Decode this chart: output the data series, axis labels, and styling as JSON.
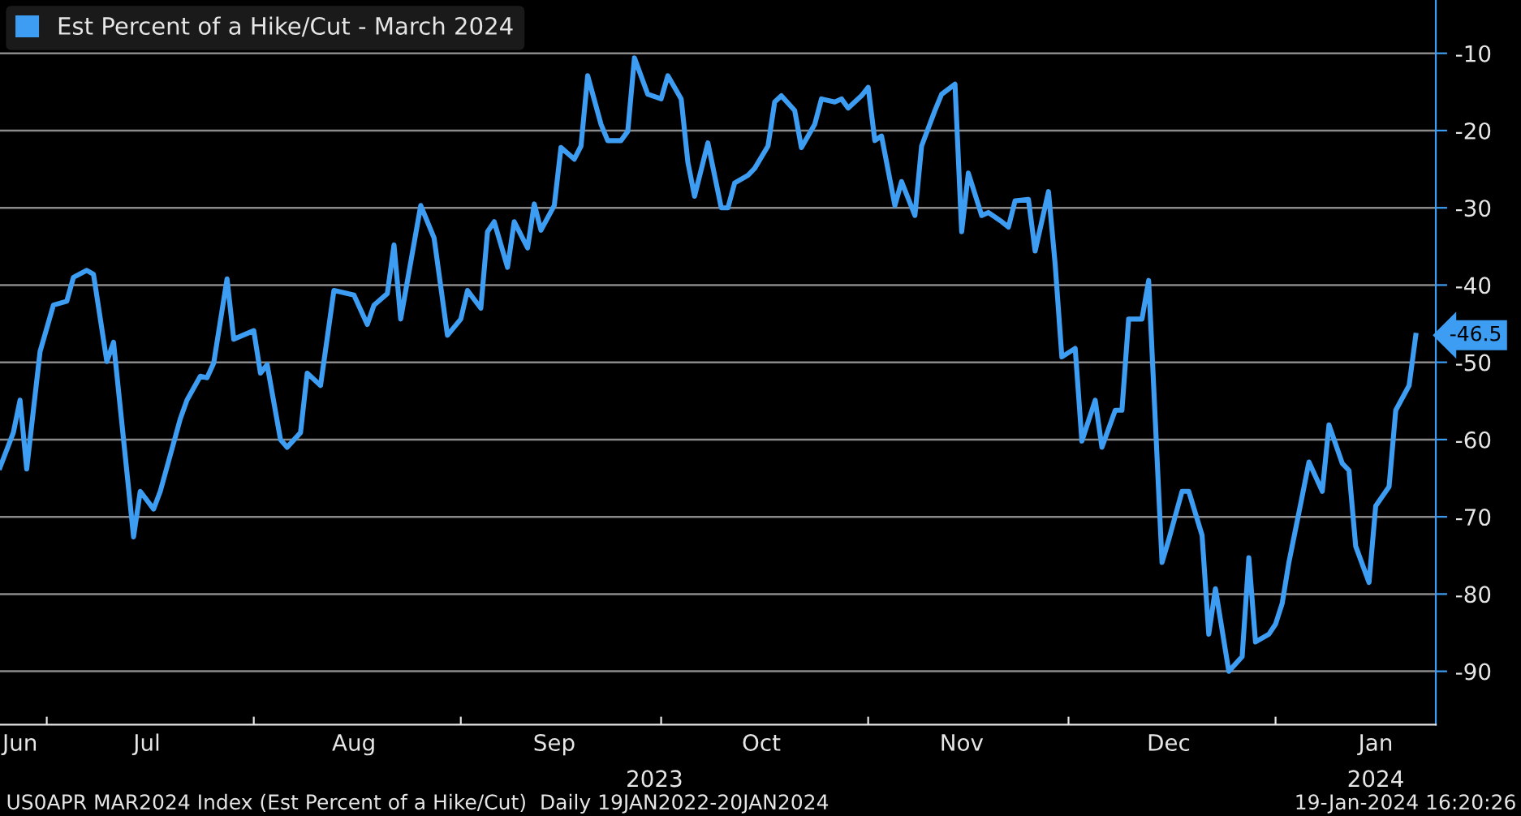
{
  "chart_data": {
    "type": "line",
    "x": [
      "2023-06-24",
      "2023-06-26",
      "2023-06-27",
      "2023-06-28",
      "2023-06-30",
      "2023-07-02",
      "2023-07-04",
      "2023-07-05",
      "2023-07-07",
      "2023-07-08",
      "2023-07-10",
      "2023-07-11",
      "2023-07-14",
      "2023-07-15",
      "2023-07-17",
      "2023-07-18",
      "2023-07-21",
      "2023-07-22",
      "2023-07-24",
      "2023-07-25",
      "2023-07-26",
      "2023-07-28",
      "2023-07-29",
      "2023-08-01",
      "2023-08-02",
      "2023-08-03",
      "2023-08-05",
      "2023-08-06",
      "2023-08-08",
      "2023-08-09",
      "2023-08-11",
      "2023-08-13",
      "2023-08-16",
      "2023-08-18",
      "2023-08-19",
      "2023-08-21",
      "2023-08-22",
      "2023-08-23",
      "2023-08-26",
      "2023-08-28",
      "2023-08-30",
      "2023-09-01",
      "2023-09-02",
      "2023-09-04",
      "2023-09-05",
      "2023-09-06",
      "2023-09-08",
      "2023-09-09",
      "2023-09-11",
      "2023-09-12",
      "2023-09-13",
      "2023-09-15",
      "2023-09-16",
      "2023-09-18",
      "2023-09-19",
      "2023-09-20",
      "2023-09-22",
      "2023-09-23",
      "2023-09-25",
      "2023-09-26",
      "2023-09-27",
      "2023-09-29",
      "2023-10-01",
      "2023-10-02",
      "2023-10-04",
      "2023-10-05",
      "2023-10-06",
      "2023-10-08",
      "2023-10-10",
      "2023-10-11",
      "2023-10-12",
      "2023-10-14",
      "2023-10-15",
      "2023-10-17",
      "2023-10-18",
      "2023-10-19",
      "2023-10-21",
      "2023-10-22",
      "2023-10-24",
      "2023-10-25",
      "2023-10-27",
      "2023-10-28",
      "2023-10-29",
      "2023-10-31",
      "2023-11-01",
      "2023-11-02",
      "2023-11-03",
      "2023-11-05",
      "2023-11-06",
      "2023-11-08",
      "2023-11-09",
      "2023-11-11",
      "2023-11-12",
      "2023-11-14",
      "2023-11-15",
      "2023-11-16",
      "2023-11-18",
      "2023-11-19",
      "2023-11-21",
      "2023-11-22",
      "2023-11-23",
      "2023-11-25",
      "2023-11-26",
      "2023-11-28",
      "2023-11-29",
      "2023-11-30",
      "2023-12-02",
      "2023-12-03",
      "2023-12-05",
      "2023-12-06",
      "2023-12-08",
      "2023-12-09",
      "2023-12-10",
      "2023-12-12",
      "2023-12-13",
      "2023-12-15",
      "2023-12-16",
      "2023-12-18",
      "2023-12-19",
      "2023-12-21",
      "2023-12-22",
      "2023-12-23",
      "2023-12-25",
      "2023-12-27",
      "2023-12-28",
      "2023-12-29",
      "2023-12-31",
      "2024-01-01",
      "2024-01-02",
      "2024-01-03",
      "2024-01-05",
      "2024-01-06",
      "2024-01-08",
      "2024-01-09",
      "2024-01-11",
      "2024-01-12",
      "2024-01-13",
      "2024-01-15",
      "2024-01-16",
      "2024-01-18",
      "2024-01-19",
      "2024-01-21",
      "2024-01-22"
    ],
    "series": [
      {
        "name": "Est Percent of a Hike/Cut - March 2024",
        "color": "#3d9df2",
        "values": [
          -63.6,
          -59.1,
          -54.9,
          -63.8,
          -48.6,
          -42.6,
          -42.1,
          -39.0,
          -38.1,
          -38.6,
          -49.9,
          -47.4,
          -72.6,
          -66.7,
          -69.0,
          -66.7,
          -57.3,
          -54.9,
          -51.8,
          -52.0,
          -50.1,
          -39.2,
          -47.0,
          -45.9,
          -51.4,
          -50.3,
          -60.0,
          -61.0,
          -59.1,
          -51.4,
          -53.0,
          -40.7,
          -41.3,
          -45.1,
          -42.6,
          -41.1,
          -34.8,
          -44.4,
          -29.7,
          -33.9,
          -46.5,
          -44.4,
          -40.7,
          -43.0,
          -33.1,
          -31.8,
          -37.7,
          -31.8,
          -35.2,
          -29.5,
          -32.9,
          -29.7,
          -22.2,
          -23.7,
          -22.0,
          -12.9,
          -19.2,
          -21.3,
          -21.3,
          -20.1,
          -10.6,
          -15.3,
          -15.9,
          -12.9,
          -15.9,
          -24.1,
          -28.5,
          -21.6,
          -30.0,
          -30.0,
          -26.8,
          -25.8,
          -24.9,
          -22.0,
          -16.3,
          -15.5,
          -17.4,
          -22.2,
          -19.2,
          -15.9,
          -16.3,
          -15.9,
          -17.1,
          -15.5,
          -14.4,
          -21.3,
          -20.7,
          -29.7,
          -26.6,
          -31.0,
          -22.0,
          -17.4,
          -15.3,
          -14.0,
          -33.1,
          -25.5,
          -31.0,
          -30.6,
          -31.8,
          -32.5,
          -29.1,
          -28.9,
          -35.6,
          -27.9,
          -37.3,
          -49.3,
          -48.2,
          -60.2,
          -54.9,
          -61.0,
          -56.2,
          -56.2,
          -44.4,
          -44.4,
          -39.4,
          -75.9,
          -73.0,
          -66.7,
          -66.7,
          -72.4,
          -85.2,
          -79.3,
          -90.0,
          -88.1,
          -75.3,
          -86.2,
          -85.2,
          -83.9,
          -81.2,
          -75.9,
          -67.3,
          -62.9,
          -66.7,
          -58.1,
          -63.1,
          -64.0,
          -73.8,
          -78.5,
          -68.6,
          -66.1,
          -56.2,
          -53.0,
          -46.5
        ],
        "value_labels": [
          null,
          null,
          null,
          null,
          null,
          null,
          null,
          null,
          null,
          null,
          null,
          null,
          null,
          null,
          null,
          null,
          null,
          null,
          null,
          null,
          null,
          null,
          null,
          null,
          null,
          null,
          null,
          null,
          null,
          null,
          null,
          null,
          null,
          null,
          null,
          null,
          null,
          null,
          null,
          null,
          null,
          null,
          null,
          null,
          null,
          null,
          null,
          null,
          null,
          null,
          null,
          null,
          null,
          null,
          null,
          null,
          null,
          null,
          null,
          null,
          null,
          null,
          null,
          null,
          null,
          null,
          null,
          null,
          null,
          null,
          null,
          null,
          null,
          null,
          null,
          null,
          null,
          null,
          null,
          null,
          null,
          null,
          null,
          null,
          null,
          null,
          null,
          null,
          null,
          null,
          null,
          null,
          null,
          null,
          null,
          null,
          null,
          null,
          null,
          null,
          null,
          null,
          null,
          null,
          null,
          null,
          null,
          null,
          null,
          null,
          null,
          null,
          null,
          null,
          null,
          null,
          null,
          null,
          null,
          null,
          null,
          null,
          null,
          null,
          null,
          null,
          null,
          null,
          null,
          null,
          null,
          null,
          null,
          null,
          null,
          null,
          null,
          null,
          null,
          null,
          null,
          null,
          "-46.5"
        ]
      }
    ],
    "xlim": [
      "2023-06-24",
      "2024-01-25"
    ],
    "xticks": [
      {
        "value": "2023-06-27",
        "label": "Jun"
      },
      {
        "value": "2023-07-01",
        "label": null
      },
      {
        "value": "2023-07-16",
        "label": "Jul"
      },
      {
        "value": "2023-08-01",
        "label": null
      },
      {
        "value": "2023-08-16",
        "label": "Aug"
      },
      {
        "value": "2023-09-01",
        "label": null
      },
      {
        "value": "2023-09-15",
        "label": "Sep"
      },
      {
        "value": "2023-10-01",
        "label": null
      },
      {
        "value": "2023-10-16",
        "label": "Oct"
      },
      {
        "value": "2023-11-01",
        "label": null
      },
      {
        "value": "2023-11-15",
        "label": "Nov"
      },
      {
        "value": "2023-12-01",
        "label": null
      },
      {
        "value": "2023-12-16",
        "label": "Dec"
      },
      {
        "value": "2024-01-01",
        "label": null
      },
      {
        "value": "2024-01-16",
        "label": "Jan"
      }
    ],
    "ylim": [
      -96.9,
      -3.1
    ],
    "yticks": [
      -10,
      -20,
      -30,
      -40,
      -50,
      -60,
      -70,
      -80,
      -90
    ],
    "grid": "y",
    "legend": "top left",
    "marker": "none",
    "line_style": "solid",
    "x2lim": [
      "2023-06-24",
      "2024-01-25"
    ],
    "x2ticks": [
      {
        "value": "2023-09-30",
        "label": "2023"
      },
      {
        "value": "2024-01-16",
        "label": "2024"
      }
    ],
    "annotations": [
      "US0APR MAR2024 Index (Est Percent of a Hike/Cut)  Daily 19JAN2022-20JAN2024",
      "19-Jan-2024 16:20:26"
    ]
  }
}
